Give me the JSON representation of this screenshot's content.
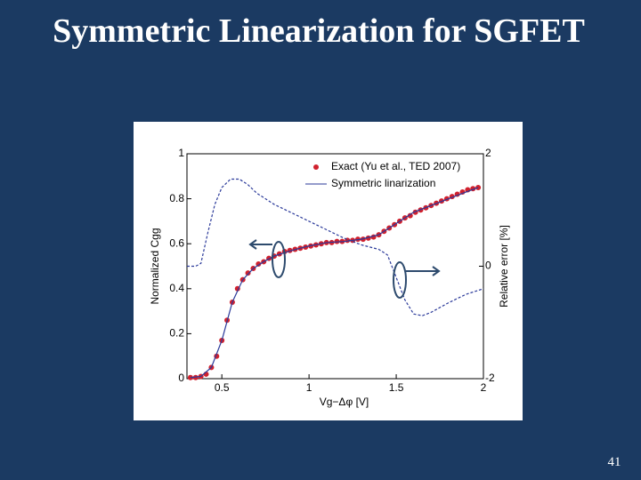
{
  "slide_title": "Symmetric Linearization for SGFET",
  "page_number": "41",
  "chart_data": {
    "type": "line",
    "xlabel": "Vg−Δφ [V]",
    "ylabel": "Normalized Cgg",
    "y2label": "Relative error [%]",
    "xlim": [
      0.3,
      2
    ],
    "xticks": [
      0.5,
      1,
      1.5,
      2
    ],
    "ylim": [
      0,
      1
    ],
    "yticks": [
      0,
      0.2,
      0.4,
      0.6,
      0.8,
      1
    ],
    "y2lim": [
      -2,
      2
    ],
    "y2ticks": [
      -2,
      0,
      2
    ],
    "legend": "upper right",
    "series": [
      {
        "name": "Exact (Yu et al., TED 2007)",
        "style": "markers",
        "color": "#d0212e",
        "x": [
          0.32,
          0.35,
          0.38,
          0.41,
          0.44,
          0.47,
          0.5,
          0.53,
          0.56,
          0.59,
          0.62,
          0.65,
          0.68,
          0.71,
          0.74,
          0.77,
          0.8,
          0.83,
          0.86,
          0.89,
          0.92,
          0.95,
          0.98,
          1.01,
          1.04,
          1.07,
          1.1,
          1.13,
          1.16,
          1.19,
          1.22,
          1.25,
          1.28,
          1.31,
          1.34,
          1.37,
          1.4,
          1.43,
          1.46,
          1.49,
          1.52,
          1.55,
          1.58,
          1.61,
          1.64,
          1.67,
          1.7,
          1.73,
          1.76,
          1.79,
          1.82,
          1.85,
          1.88,
          1.91,
          1.94,
          1.97
        ],
        "values": [
          0.005,
          0.005,
          0.01,
          0.02,
          0.05,
          0.1,
          0.17,
          0.26,
          0.34,
          0.4,
          0.44,
          0.47,
          0.49,
          0.51,
          0.52,
          0.535,
          0.545,
          0.555,
          0.565,
          0.57,
          0.575,
          0.58,
          0.585,
          0.59,
          0.595,
          0.6,
          0.605,
          0.605,
          0.61,
          0.61,
          0.615,
          0.615,
          0.62,
          0.62,
          0.625,
          0.63,
          0.64,
          0.655,
          0.67,
          0.685,
          0.7,
          0.715,
          0.725,
          0.74,
          0.75,
          0.76,
          0.77,
          0.78,
          0.79,
          0.8,
          0.81,
          0.82,
          0.83,
          0.84,
          0.845,
          0.85
        ]
      },
      {
        "name": "Symmetric linarization",
        "style": "solid",
        "color": "#2b3a9a",
        "x": [
          0.32,
          0.38,
          0.44,
          0.5,
          0.56,
          0.62,
          0.68,
          0.74,
          0.8,
          0.9,
          1.0,
          1.1,
          1.2,
          1.3,
          1.4,
          1.5,
          1.6,
          1.7,
          1.8,
          1.9,
          1.97
        ],
        "values": [
          0.005,
          0.01,
          0.05,
          0.17,
          0.34,
          0.44,
          0.49,
          0.52,
          0.545,
          0.57,
          0.59,
          0.605,
          0.61,
          0.62,
          0.64,
          0.69,
          0.74,
          0.77,
          0.8,
          0.83,
          0.85
        ]
      },
      {
        "style": "dashed",
        "color": "#2b3a9a",
        "axis": "y2",
        "x": [
          0.3,
          0.35,
          0.38,
          0.42,
          0.46,
          0.5,
          0.55,
          0.6,
          0.65,
          0.7,
          0.8,
          0.9,
          1.0,
          1.1,
          1.2,
          1.3,
          1.4,
          1.45,
          1.5,
          1.55,
          1.6,
          1.65,
          1.7,
          1.8,
          1.9,
          2.0
        ],
        "values": [
          0,
          0,
          0.05,
          0.6,
          1.1,
          1.4,
          1.55,
          1.55,
          1.45,
          1.3,
          1.1,
          0.95,
          0.8,
          0.65,
          0.5,
          0.38,
          0.3,
          0.2,
          -0.2,
          -0.6,
          -0.85,
          -0.88,
          -0.82,
          -0.65,
          -0.5,
          -0.4
        ]
      }
    ]
  }
}
